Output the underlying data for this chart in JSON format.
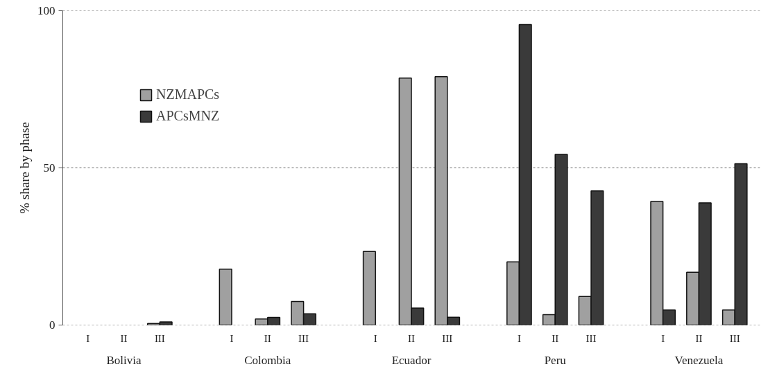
{
  "chart_data": {
    "type": "bar",
    "ylabel": "% share by phase",
    "categories": [
      "I",
      "II",
      "III",
      "I",
      "II",
      "III",
      "I",
      "II",
      "III",
      "I",
      "II",
      "III",
      "I",
      "II",
      "III"
    ],
    "annotations": [
      "Bolivia",
      "Colombia",
      "Ecuador",
      "Peru",
      "Venezuela"
    ],
    "series": [
      {
        "name": "NZMAPCs",
        "color": "#a0a0a0",
        "values": [
          null,
          null,
          0.5,
          17.8,
          1.9,
          7.5,
          23.4,
          78.6,
          79.0,
          20.1,
          3.3,
          9.1,
          39.3,
          16.8,
          4.8
        ]
      },
      {
        "name": "APCsMNZ",
        "color": "#3a3a3a",
        "values": [
          null,
          null,
          1.0,
          null,
          2.4,
          3.6,
          null,
          5.4,
          2.5,
          95.6,
          54.3,
          42.7,
          4.8,
          38.9,
          51.3
        ]
      }
    ],
    "ylim": [
      0,
      100
    ],
    "yticks": [
      0,
      50,
      100
    ],
    "grid": "y",
    "legend": "top left"
  }
}
